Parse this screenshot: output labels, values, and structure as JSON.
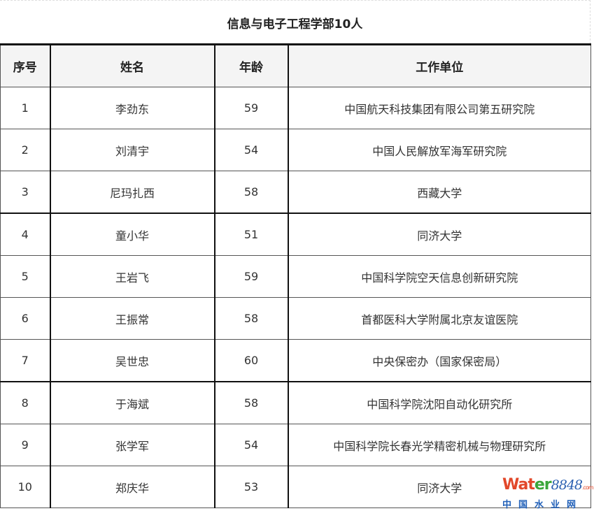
{
  "title": "信息与电子工程学部10人",
  "headers": [
    "序号",
    "姓名",
    "年龄",
    "工作单位"
  ],
  "rows": [
    [
      "1",
      "李劲东",
      "59",
      "中国航天科技集团有限公司第五研究院"
    ],
    [
      "2",
      "刘清宇",
      "54",
      "中国人民解放军海军研究院"
    ],
    [
      "3",
      "尼玛扎西",
      "58",
      "西藏大学"
    ],
    [
      "4",
      "童小华",
      "51",
      "同济大学"
    ],
    [
      "5",
      "王岩飞",
      "59",
      "中国科学院空天信息创新研究院"
    ],
    [
      "6",
      "王振常",
      "58",
      "首都医科大学附属北京友谊医院"
    ],
    [
      "7",
      "吴世忠",
      "60",
      "中央保密办（国家保密局）"
    ],
    [
      "8",
      "于海斌",
      "58",
      "中国科学院沈阳自动化研究所"
    ],
    [
      "9",
      "张学军",
      "54",
      "中国科学院长春光学精密机械与物理研究所"
    ],
    [
      "10",
      "郑庆华",
      "53",
      "同济大学"
    ]
  ],
  "watermark": {
    "brand_a": "Wat",
    "brand_b": "er",
    "brand_num": "8848",
    "brand_com": ".com",
    "subtitle": "中国水业网"
  }
}
